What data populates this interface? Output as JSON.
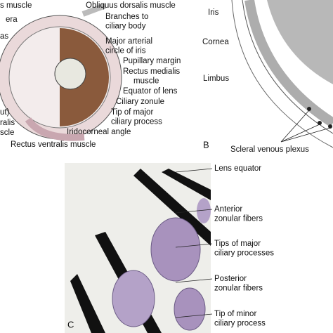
{
  "panel_a": {
    "labels": [
      [
        "s muscle"
      ],
      [
        "Obliquus dorsalis muscle"
      ],
      [
        "era"
      ],
      [
        "Branches to",
        "ciliary body"
      ],
      [
        "as"
      ],
      [
        "Major arterial",
        "circle of iris"
      ],
      [
        "Pupillary margin"
      ],
      [
        "Rectus medialis",
        "muscle"
      ],
      [
        "Equator of lens"
      ],
      [
        "Ciliary zonule"
      ],
      [
        "Tip of major",
        "ciliary process"
      ],
      [
        "ut)"
      ],
      [
        "ralis"
      ],
      [
        "scle"
      ],
      [
        "Iridocorneal angle"
      ],
      [
        "Rectus ventralis muscle"
      ]
    ]
  },
  "panel_b": {
    "letter": "B",
    "labels": [
      [
        "Iris"
      ],
      [
        "Cornea"
      ],
      [
        "Limbus"
      ],
      [
        "Scleral venous plexus"
      ]
    ]
  },
  "panel_c": {
    "letter": "C",
    "labels": [
      [
        "Lens equator"
      ],
      [
        "Anterior",
        "zonular fibers"
      ],
      [
        "Tips of major",
        "ciliary processes"
      ],
      [
        "Posterior",
        "zonular fibers"
      ],
      [
        "Tip of minor",
        "ciliary process"
      ]
    ]
  }
}
